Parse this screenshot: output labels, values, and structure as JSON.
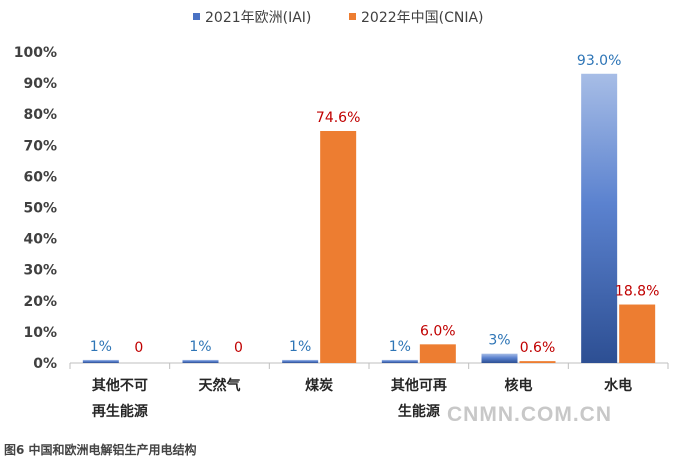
{
  "chart_data": {
    "type": "bar",
    "categories": [
      [
        "其他不可",
        "再生能源"
      ],
      [
        "天然气"
      ],
      [
        "煤炭"
      ],
      [
        "其他可再",
        "生能源"
      ],
      [
        "核电"
      ],
      [
        "水电"
      ]
    ],
    "series": [
      {
        "name": "2021年欧洲(IAI)",
        "values": [
          1,
          1,
          1,
          1,
          3,
          93.0
        ],
        "labels": [
          "1%",
          "1%",
          "1%",
          "1%",
          "3%",
          "93.0%"
        ],
        "color": "#4a72c4",
        "label_color": "#2e75b6"
      },
      {
        "name": "2022年中国(CNIA)",
        "values": [
          0,
          0,
          74.6,
          6.0,
          0.6,
          18.8
        ],
        "labels": [
          "0",
          "0",
          "74.6%",
          "6.0%",
          "0.6%",
          "18.8%"
        ],
        "color": "#ed7d31",
        "label_color": "#c00000"
      }
    ],
    "ylim": [
      0,
      100
    ],
    "yticks": [
      "0%",
      "10%",
      "20%",
      "30%",
      "40%",
      "50%",
      "60%",
      "70%",
      "80%",
      "90%",
      "100%"
    ],
    "grid": false,
    "legend": "top-center"
  },
  "watermark": "CNMN.COM.CN",
  "caption": "图6 中国和欧洲电解铝生产用电结构"
}
